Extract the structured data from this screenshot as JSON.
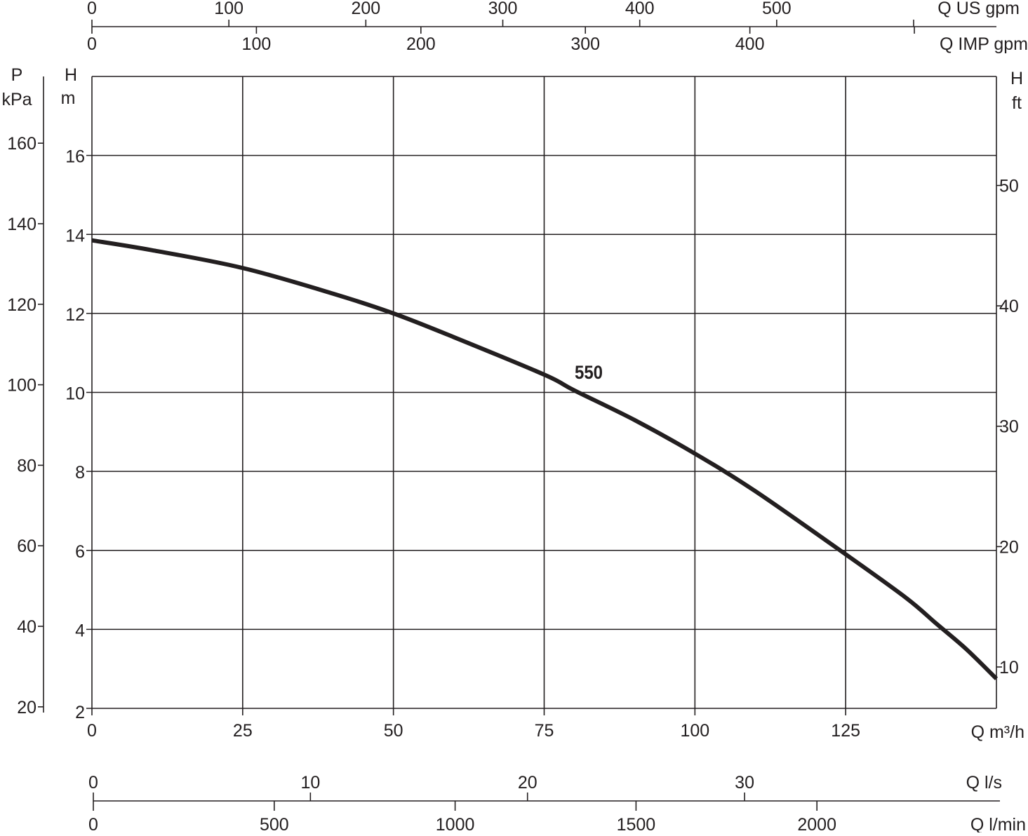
{
  "chart_data": {
    "type": "line",
    "title": "",
    "xlabel": "Q m³/h",
    "ylabel_left_head": {
      "symbol": "H",
      "unit": "m"
    },
    "ylabel_left_pressure": {
      "symbol": "P",
      "unit": "kPa"
    },
    "ylabel_right": {
      "symbol": "H",
      "unit": "ft"
    },
    "xlim": [
      0,
      150
    ],
    "ylim": [
      2,
      18
    ],
    "grid": true,
    "x_ticks": [
      0,
      25,
      50,
      75,
      100,
      125
    ],
    "y_ticks": [
      2,
      4,
      6,
      8,
      10,
      12,
      14,
      16
    ],
    "pressure_ticks_kpa": [
      20,
      40,
      60,
      80,
      100,
      120,
      140,
      160
    ],
    "feet_ticks": [
      10,
      20,
      30,
      40,
      50
    ],
    "secondary_axes": {
      "us_gpm": {
        "label": "Q US gpm",
        "ticks": [
          0,
          100,
          200,
          300,
          400,
          500
        ],
        "unlabeled_ticks": [
          600
        ]
      },
      "imp_gpm": {
        "label": "Q IMP gpm",
        "ticks": [
          0,
          100,
          200,
          300,
          400
        ],
        "unlabeled_ticks": [
          500
        ]
      },
      "l_per_s": {
        "label": "Q l/s",
        "ticks": [
          0,
          10,
          20,
          30
        ]
      },
      "l_per_min": {
        "label": "Q l/min",
        "ticks": [
          0,
          500,
          1000,
          1500,
          2000
        ]
      }
    },
    "series": [
      {
        "name": "550",
        "color": "#231f20",
        "x": [
          0,
          10,
          25,
          40,
          50,
          60,
          75,
          80,
          90,
          100,
          110,
          125,
          135,
          140,
          145,
          150
        ],
        "y": [
          13.85,
          13.6,
          13.15,
          12.5,
          12.0,
          11.4,
          10.45,
          10.05,
          9.3,
          8.45,
          7.5,
          5.9,
          4.8,
          4.15,
          3.5,
          2.75
        ]
      }
    ]
  }
}
